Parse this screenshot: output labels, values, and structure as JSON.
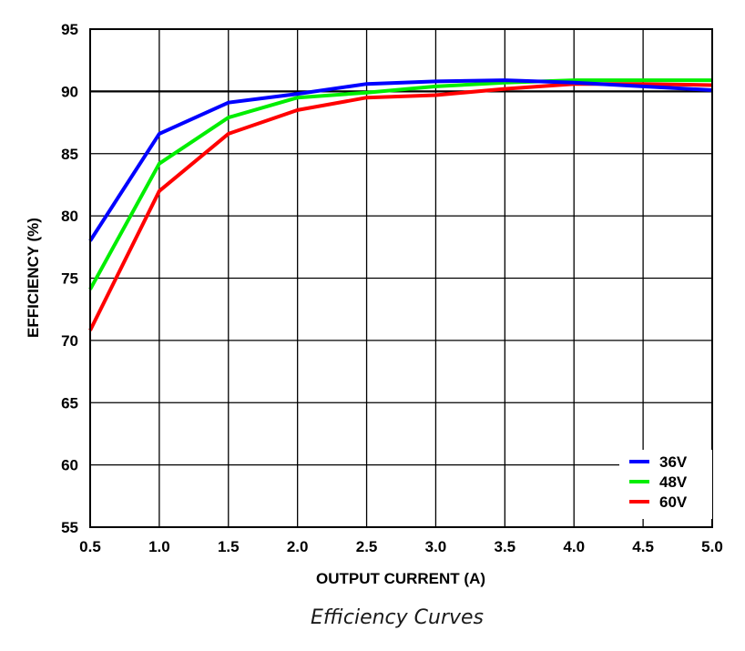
{
  "chart_data": {
    "type": "line",
    "caption": "Efficiency Curves",
    "xlabel": "OUTPUT CURRENT (A)",
    "ylabel": "EFFICIENCY (%)",
    "xlim": [
      0.5,
      5.0
    ],
    "ylim": [
      55,
      95
    ],
    "x_ticks": [
      "0.5",
      "1.0",
      "1.5",
      "2.0",
      "2.5",
      "3.0",
      "3.5",
      "4.0",
      "4.5",
      "5.0"
    ],
    "y_ticks": [
      "55",
      "60",
      "65",
      "70",
      "75",
      "80",
      "85",
      "90",
      "95"
    ],
    "grid": true,
    "legend_position": "bottom-right",
    "x": [
      0.5,
      1.0,
      1.5,
      2.0,
      2.5,
      3.0,
      3.5,
      4.0,
      4.5,
      5.0
    ],
    "series": [
      {
        "name": "36V",
        "color": "#0000ff",
        "values": [
          78.0,
          86.6,
          89.1,
          89.8,
          90.6,
          90.8,
          90.9,
          90.7,
          90.4,
          90.1
        ]
      },
      {
        "name": "48V",
        "color": "#00ee00",
        "values": [
          74.1,
          84.2,
          87.9,
          89.5,
          89.9,
          90.4,
          90.7,
          90.9,
          90.9,
          90.9
        ]
      },
      {
        "name": "60V",
        "color": "#ff0000",
        "values": [
          70.8,
          82.0,
          86.6,
          88.5,
          89.5,
          89.7,
          90.2,
          90.6,
          90.6,
          90.5
        ]
      }
    ]
  }
}
